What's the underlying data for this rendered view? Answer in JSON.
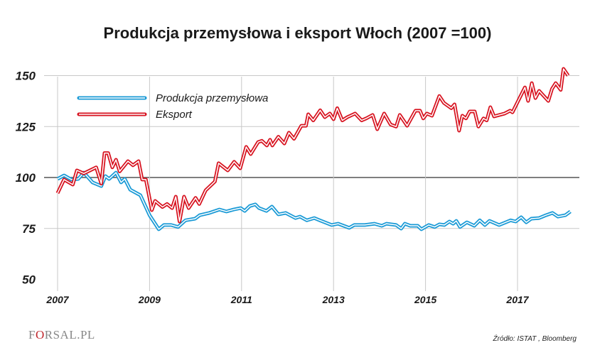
{
  "chart_data": {
    "type": "line",
    "title": "Produkcja przemysłowa i eksport Włoch (2007 =100)",
    "xlabel": "",
    "ylabel": "",
    "xlim": [
      2007,
      2018.2
    ],
    "ylim": [
      50,
      150
    ],
    "x_ticks": [
      "2007",
      "2009",
      "2011",
      "2013",
      "2015",
      "2017"
    ],
    "y_ticks": [
      "150",
      "125",
      "100",
      "75",
      "50"
    ],
    "grid": true,
    "legend": "top-left",
    "series": [
      {
        "name": "Produkcja przemysłowa",
        "color": "#1a9ad6",
        "points": [
          [
            2007.0,
            99.3
          ],
          [
            2007.14,
            101
          ],
          [
            2007.3,
            99
          ],
          [
            2007.45,
            99.3
          ],
          [
            2007.57,
            102.4
          ],
          [
            2007.76,
            97.6
          ],
          [
            2007.95,
            95.8
          ],
          [
            2008.04,
            100.7
          ],
          [
            2008.12,
            99.3
          ],
          [
            2008.27,
            102.4
          ],
          [
            2008.38,
            97.6
          ],
          [
            2008.46,
            99.3
          ],
          [
            2008.58,
            94
          ],
          [
            2008.8,
            91.3
          ],
          [
            2009.0,
            81.5
          ],
          [
            2009.2,
            74.6
          ],
          [
            2009.31,
            76.7
          ],
          [
            2009.47,
            76.7
          ],
          [
            2009.62,
            75.7
          ],
          [
            2009.78,
            79
          ],
          [
            2009.99,
            79.8
          ],
          [
            2010.09,
            81.5
          ],
          [
            2010.3,
            82.6
          ],
          [
            2010.52,
            84.3
          ],
          [
            2010.67,
            83.3
          ],
          [
            2010.83,
            84.3
          ],
          [
            2010.98,
            85
          ],
          [
            2011.07,
            83.6
          ],
          [
            2011.18,
            86
          ],
          [
            2011.3,
            86.8
          ],
          [
            2011.38,
            85
          ],
          [
            2011.54,
            83.6
          ],
          [
            2011.66,
            85.7
          ],
          [
            2011.8,
            81.9
          ],
          [
            2011.96,
            82.6
          ],
          [
            2012.17,
            80.1
          ],
          [
            2012.27,
            80.8
          ],
          [
            2012.42,
            79
          ],
          [
            2012.58,
            80.1
          ],
          [
            2012.7,
            79
          ],
          [
            2012.96,
            76.7
          ],
          [
            2013.1,
            77.3
          ],
          [
            2013.34,
            75.3
          ],
          [
            2013.45,
            76.7
          ],
          [
            2013.68,
            76.7
          ],
          [
            2013.89,
            77.3
          ],
          [
            2014.05,
            76.3
          ],
          [
            2014.15,
            77.3
          ],
          [
            2014.36,
            76.7
          ],
          [
            2014.47,
            74.9
          ],
          [
            2014.55,
            77.3
          ],
          [
            2014.67,
            76.3
          ],
          [
            2014.83,
            76.3
          ],
          [
            2014.91,
            74.6
          ],
          [
            2015.07,
            76.7
          ],
          [
            2015.2,
            75.7
          ],
          [
            2015.3,
            77
          ],
          [
            2015.41,
            76.7
          ],
          [
            2015.52,
            78.4
          ],
          [
            2015.6,
            77.3
          ],
          [
            2015.67,
            78.7
          ],
          [
            2015.75,
            75.7
          ],
          [
            2015.9,
            78
          ],
          [
            2016.06,
            76.3
          ],
          [
            2016.18,
            79
          ],
          [
            2016.29,
            76.7
          ],
          [
            2016.39,
            78.7
          ],
          [
            2016.6,
            76.7
          ],
          [
            2016.85,
            79
          ],
          [
            2016.96,
            78.4
          ],
          [
            2017.08,
            80.5
          ],
          [
            2017.19,
            78
          ],
          [
            2017.3,
            79.8
          ],
          [
            2017.47,
            80.1
          ],
          [
            2017.62,
            81.5
          ],
          [
            2017.76,
            82.6
          ],
          [
            2017.88,
            80.8
          ],
          [
            2018.04,
            81.5
          ],
          [
            2018.15,
            83.3
          ]
        ]
      },
      {
        "name": "Eksport",
        "color": "#d7121f",
        "points": [
          [
            2007.0,
            92.3
          ],
          [
            2007.14,
            99
          ],
          [
            2007.33,
            96.5
          ],
          [
            2007.42,
            103.5
          ],
          [
            2007.57,
            102
          ],
          [
            2007.84,
            105
          ],
          [
            2007.95,
            97
          ],
          [
            2008.02,
            112
          ],
          [
            2008.1,
            112
          ],
          [
            2008.19,
            105
          ],
          [
            2008.27,
            108.7
          ],
          [
            2008.35,
            103
          ],
          [
            2008.53,
            108
          ],
          [
            2008.64,
            106
          ],
          [
            2008.76,
            108
          ],
          [
            2008.84,
            99
          ],
          [
            2008.92,
            99
          ],
          [
            2009.05,
            84
          ],
          [
            2009.12,
            88.5
          ],
          [
            2009.28,
            85.5
          ],
          [
            2009.38,
            87
          ],
          [
            2009.49,
            85
          ],
          [
            2009.57,
            90.6
          ],
          [
            2009.65,
            78.4
          ],
          [
            2009.75,
            90.6
          ],
          [
            2009.85,
            85
          ],
          [
            2010.0,
            90
          ],
          [
            2010.08,
            87
          ],
          [
            2010.22,
            93.7
          ],
          [
            2010.42,
            98
          ],
          [
            2010.5,
            107
          ],
          [
            2010.7,
            103.5
          ],
          [
            2010.84,
            107.7
          ],
          [
            2010.97,
            104.5
          ],
          [
            2011.1,
            115
          ],
          [
            2011.2,
            111.5
          ],
          [
            2011.36,
            117.4
          ],
          [
            2011.44,
            118
          ],
          [
            2011.55,
            115.7
          ],
          [
            2011.62,
            118.5
          ],
          [
            2011.67,
            115.7
          ],
          [
            2011.8,
            120
          ],
          [
            2011.93,
            116.7
          ],
          [
            2012.03,
            122
          ],
          [
            2012.14,
            119
          ],
          [
            2012.3,
            125.4
          ],
          [
            2012.4,
            125.4
          ],
          [
            2012.45,
            131
          ],
          [
            2012.56,
            128
          ],
          [
            2012.71,
            133
          ],
          [
            2012.81,
            129.6
          ],
          [
            2012.92,
            131.4
          ],
          [
            2013.0,
            128.6
          ],
          [
            2013.08,
            134
          ],
          [
            2013.19,
            128
          ],
          [
            2013.3,
            129.6
          ],
          [
            2013.47,
            131.4
          ],
          [
            2013.61,
            128
          ],
          [
            2013.71,
            129
          ],
          [
            2013.85,
            130.7
          ],
          [
            2013.95,
            123.7
          ],
          [
            2014.1,
            131.4
          ],
          [
            2014.24,
            126
          ],
          [
            2014.36,
            125
          ],
          [
            2014.44,
            130.7
          ],
          [
            2014.6,
            125.4
          ],
          [
            2014.78,
            132.8
          ],
          [
            2014.88,
            132.8
          ],
          [
            2014.95,
            129
          ],
          [
            2015.03,
            131.4
          ],
          [
            2015.14,
            130.3
          ],
          [
            2015.3,
            140
          ],
          [
            2015.4,
            136.6
          ],
          [
            2015.56,
            134
          ],
          [
            2015.63,
            135.9
          ],
          [
            2015.73,
            123
          ],
          [
            2015.8,
            130.3
          ],
          [
            2015.88,
            129
          ],
          [
            2015.96,
            132.4
          ],
          [
            2016.07,
            132.4
          ],
          [
            2016.15,
            125
          ],
          [
            2016.26,
            129
          ],
          [
            2016.33,
            128
          ],
          [
            2016.41,
            134.5
          ],
          [
            2016.49,
            130
          ],
          [
            2016.72,
            131.4
          ],
          [
            2016.84,
            132.8
          ],
          [
            2016.89,
            132
          ],
          [
            2017.03,
            138.3
          ],
          [
            2017.16,
            144.2
          ],
          [
            2017.23,
            137.6
          ],
          [
            2017.31,
            146.3
          ],
          [
            2017.39,
            139
          ],
          [
            2017.47,
            142.5
          ],
          [
            2017.67,
            137.6
          ],
          [
            2017.75,
            143.5
          ],
          [
            2017.83,
            146.3
          ],
          [
            2017.94,
            143
          ],
          [
            2018.0,
            153.3
          ],
          [
            2018.1,
            150
          ]
        ]
      }
    ]
  },
  "footer": {
    "logo": "FORSAL.PL",
    "source": "Źródło: ISTAT , Bloomberg"
  }
}
